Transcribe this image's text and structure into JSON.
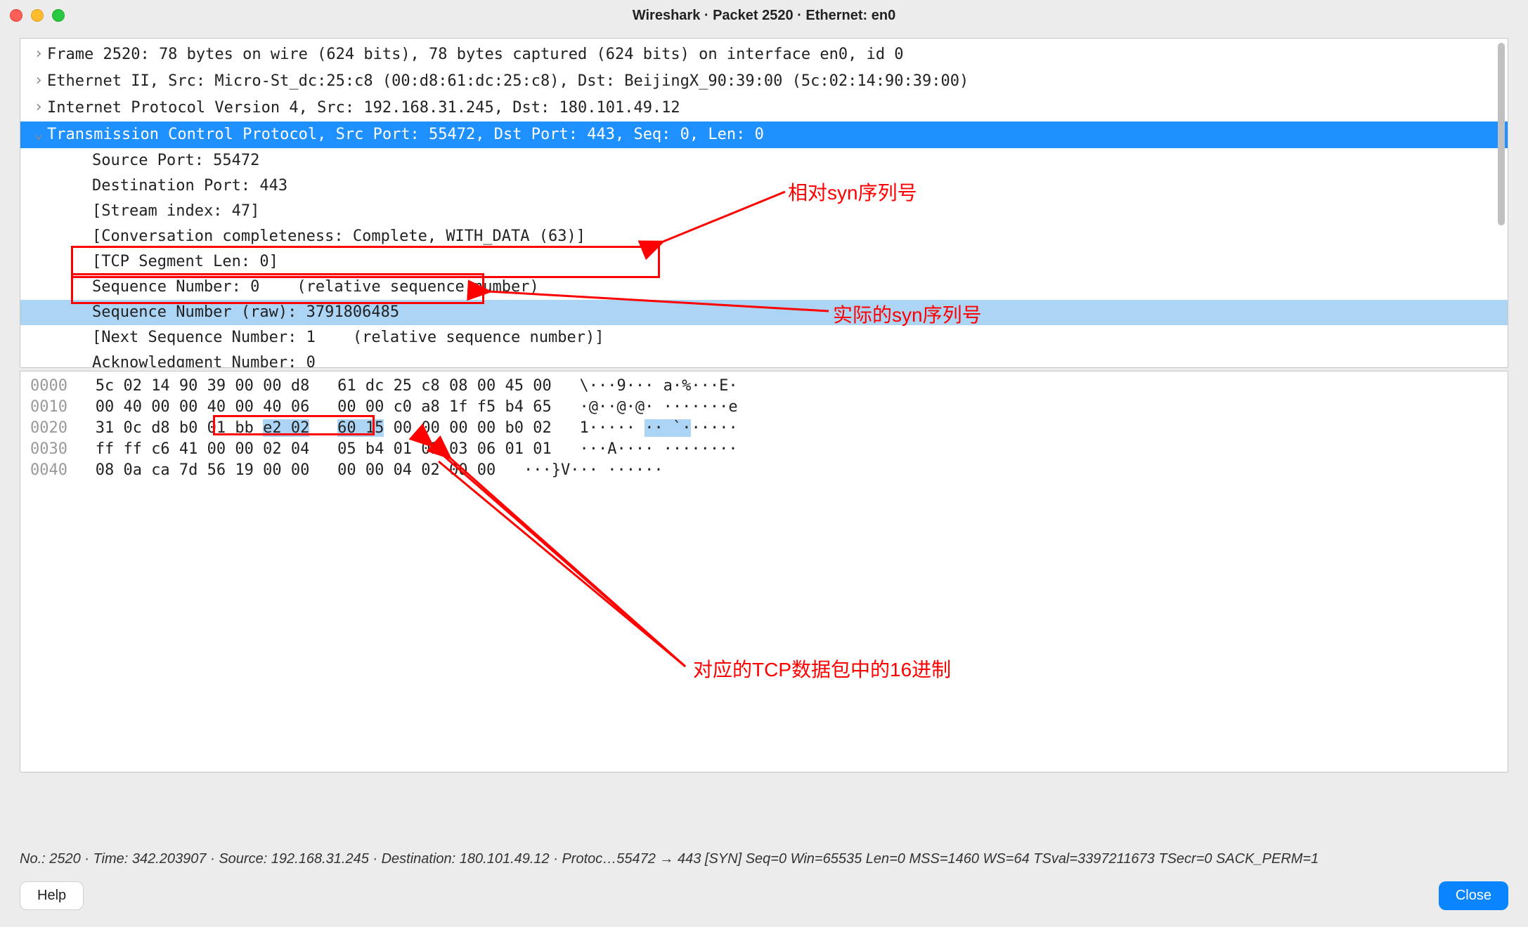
{
  "window": {
    "title": "Wireshark · Packet 2520 · Ethernet: en0"
  },
  "tree": {
    "rows": [
      {
        "indent": 1,
        "arrow": "collapsed",
        "text": "Frame 2520: 78 bytes on wire (624 bits), 78 bytes captured (624 bits) on interface en0, id 0"
      },
      {
        "indent": 1,
        "arrow": "collapsed",
        "text": "Ethernet II, Src: Micro-St_dc:25:c8 (00:d8:61:dc:25:c8), Dst: BeijingX_90:39:00 (5c:02:14:90:39:00)"
      },
      {
        "indent": 1,
        "arrow": "collapsed",
        "text": "Internet Protocol Version 4, Src: 192.168.31.245, Dst: 180.101.49.12"
      },
      {
        "indent": 1,
        "arrow": "expanded",
        "text": "Transmission Control Protocol, Src Port: 55472, Dst Port: 443, Seq: 0, Len: 0",
        "selectedDark": true
      },
      {
        "indent": 2,
        "arrow": "",
        "text": "Source Port: 55472"
      },
      {
        "indent": 2,
        "arrow": "",
        "text": "Destination Port: 443"
      },
      {
        "indent": 2,
        "arrow": "",
        "text": "[Stream index: 47]"
      },
      {
        "indent": 2,
        "arrow": "",
        "text": "[Conversation completeness: Complete, WITH_DATA (63)]"
      },
      {
        "indent": 2,
        "arrow": "",
        "text": "[TCP Segment Len: 0]"
      },
      {
        "indent": 2,
        "arrow": "",
        "text": "Sequence Number: 0    (relative sequence number)"
      },
      {
        "indent": 2,
        "arrow": "",
        "text": "Sequence Number (raw): 3791806485",
        "selectedLight": true
      },
      {
        "indent": 2,
        "arrow": "",
        "text": "[Next Sequence Number: 1    (relative sequence number)]"
      },
      {
        "indent": 2,
        "arrow": "",
        "text": "Acknowledgment Number: 0"
      }
    ]
  },
  "hex": {
    "lines": [
      {
        "offset": "0000",
        "h1": "5c 02 14 90 39 00 00 d8",
        "h2": "61 dc 25 c8 08 00 45 00",
        "ascii": "\\···9··· a·%···E·"
      },
      {
        "offset": "0010",
        "h1": "00 40 00 00 40 00 40 06",
        "h2": "00 00 c0 a8 1f f5 b4 65",
        "ascii": "·@··@·@· ·······e"
      },
      {
        "offset": "0020",
        "h1": "31 0c d8 b0 01 bb ",
        "h1b": "e2 02",
        "h2a": "60 15",
        "h2b": " 00 00 00 00 b0 02",
        "ascii": "1····· ",
        "asciib": "·· `·",
        "asciic": "·····"
      },
      {
        "offset": "0030",
        "h1": "ff ff c6 41 00 00 02 04",
        "h2": "05 b4 01 03 03 06 01 01",
        "ascii": "···A···· ········"
      },
      {
        "offset": "0040",
        "h1": "08 0a ca 7d 56 19 00 00",
        "h2": "00 00 04 02 00 00",
        "ascii": "···}V··· ······"
      }
    ]
  },
  "status": {
    "text": "No.: 2520 · Time: 342.203907 · Source: 192.168.31.245 · Destination: 180.101.49.12 · Protoc…55472 → 443 [SYN] Seq=0 Win=65535 Len=0 MSS=1460 WS=64 TSval=3397211673 TSecr=0 SACK_PERM=1"
  },
  "buttons": {
    "help": "Help",
    "close": "Close"
  },
  "annotations": {
    "label1": "相对syn序列号",
    "label2": "实际的syn序列号",
    "label3": "对应的TCP数据包中的16进制"
  },
  "colors": {
    "selectDark": "#1e90ff",
    "selectLight": "#abd4f5",
    "annotation": "#ff0000"
  }
}
